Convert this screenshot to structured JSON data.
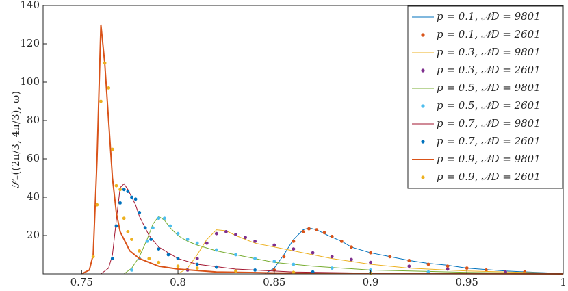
{
  "chart_data": {
    "type": "line",
    "ylabel": "𝒮₋((2π/3, 4π/3), ω)",
    "xlim": [
      0.73,
      1
    ],
    "xticks": [
      0.75,
      0.8,
      0.85,
      0.9,
      0.95,
      1
    ],
    "ylim": [
      0,
      140
    ],
    "yticks": [
      20,
      40,
      60,
      80,
      100,
      120,
      140
    ],
    "legend": "upper-right",
    "series": [
      {
        "name": "p = 0.1, 𝒩D = 9801",
        "style": "line",
        "color": "#0072bd",
        "x": [
          0.845,
          0.85,
          0.855,
          0.86,
          0.865,
          0.868,
          0.872,
          0.878,
          0.885,
          0.89,
          0.9,
          0.91,
          0.92,
          0.93,
          0.94,
          0.95,
          0.97,
          1.0
        ],
        "values": [
          0,
          3,
          10,
          18,
          23,
          24,
          23,
          20,
          17,
          14,
          11,
          9,
          7,
          5.5,
          4.5,
          3,
          1.5,
          0.2
        ]
      },
      {
        "name": "p = 0.1, 𝒩D = 2601",
        "style": "marker",
        "color": "#d95319",
        "x": [
          0.85,
          0.855,
          0.86,
          0.865,
          0.868,
          0.872,
          0.876,
          0.88,
          0.885,
          0.89,
          0.9,
          0.91,
          0.92,
          0.93,
          0.94,
          0.95,
          0.96,
          0.98
        ],
        "values": [
          2,
          9,
          17,
          22,
          23.5,
          23,
          21.5,
          19.5,
          17,
          14,
          11,
          9,
          7,
          5,
          4,
          3,
          2,
          1
        ]
      },
      {
        "name": "p = 0.3, 𝒩D = 9801",
        "style": "line",
        "color": "#edb120",
        "x": [
          0.8,
          0.805,
          0.81,
          0.815,
          0.82,
          0.825,
          0.83,
          0.835,
          0.84,
          0.85,
          0.86,
          0.87,
          0.88,
          0.89,
          0.9,
          0.92,
          0.95,
          1.0
        ],
        "values": [
          0,
          3,
          10,
          18,
          23,
          22.5,
          20,
          18,
          16,
          14,
          12,
          10,
          8,
          6.5,
          5,
          3,
          1.5,
          0.3
        ]
      },
      {
        "name": "p = 0.3, 𝒩D = 2601",
        "style": "marker",
        "color": "#7e2f8e",
        "x": [
          0.805,
          0.81,
          0.815,
          0.82,
          0.825,
          0.83,
          0.835,
          0.84,
          0.85,
          0.86,
          0.87,
          0.88,
          0.89,
          0.9,
          0.92,
          0.94,
          0.97
        ],
        "values": [
          2,
          8,
          16,
          21,
          22,
          20.5,
          19,
          17,
          15,
          13,
          11,
          9,
          7.5,
          6,
          4,
          2.5,
          1
        ]
      },
      {
        "name": "p = 0.5, 𝒩D = 9801",
        "style": "line",
        "color": "#77ac30",
        "x": [
          0.772,
          0.776,
          0.78,
          0.784,
          0.787,
          0.79,
          0.793,
          0.796,
          0.8,
          0.805,
          0.81,
          0.82,
          0.83,
          0.84,
          0.85,
          0.87,
          0.9,
          0.95,
          1.0
        ],
        "values": [
          0,
          3,
          9,
          18,
          26,
          30,
          28,
          24,
          20,
          17,
          15,
          12,
          10,
          8,
          6,
          4,
          2,
          0.8,
          0.2
        ]
      },
      {
        "name": "p = 0.5, 𝒩D = 2601",
        "style": "marker",
        "color": "#4dbeee",
        "x": [
          0.776,
          0.78,
          0.784,
          0.787,
          0.79,
          0.793,
          0.796,
          0.8,
          0.805,
          0.81,
          0.82,
          0.83,
          0.84,
          0.85,
          0.86,
          0.88,
          0.9,
          0.93
        ],
        "values": [
          2,
          8,
          17,
          24,
          29,
          29,
          25,
          21,
          18,
          16,
          12.5,
          10,
          8,
          6.5,
          5,
          3,
          2,
          1
        ]
      },
      {
        "name": "p = 0.7, 𝒩D = 9801",
        "style": "line",
        "color": "#a2142f",
        "x": [
          0.76,
          0.764,
          0.766,
          0.768,
          0.77,
          0.772,
          0.774,
          0.776,
          0.778,
          0.78,
          0.785,
          0.79,
          0.8,
          0.81,
          0.83,
          0.86,
          0.9,
          1.0
        ],
        "values": [
          0,
          3,
          10,
          28,
          45,
          47,
          44,
          40,
          36,
          30,
          20,
          14,
          8,
          5,
          2.5,
          1,
          0.4,
          0
        ]
      },
      {
        "name": "p = 0.7, 𝒩D = 2601",
        "style": "marker",
        "color": "#0072bd",
        "x": [
          0.766,
          0.768,
          0.77,
          0.772,
          0.774,
          0.776,
          0.778,
          0.78,
          0.783,
          0.786,
          0.79,
          0.795,
          0.8,
          0.81,
          0.82,
          0.84,
          0.87,
          0.9
        ],
        "values": [
          8,
          25,
          37,
          44,
          43,
          40,
          39,
          32,
          24,
          18,
          13,
          10,
          8,
          5,
          3.5,
          2,
          1,
          0.5
        ]
      },
      {
        "name": "p = 0.9, 𝒩D = 9801",
        "style": "line",
        "color": "#d95319",
        "width": 2,
        "x": [
          0.75,
          0.754,
          0.756,
          0.758,
          0.76,
          0.762,
          0.764,
          0.766,
          0.768,
          0.77,
          0.775,
          0.78,
          0.79,
          0.8,
          0.82,
          0.85,
          0.9,
          1.0
        ],
        "values": [
          0,
          2,
          10,
          60,
          130,
          110,
          80,
          50,
          32,
          22,
          12,
          8,
          4,
          2.5,
          1,
          0.5,
          0.2,
          0
        ]
      },
      {
        "name": "p = 0.9, 𝒩D = 2601",
        "style": "marker",
        "color": "#edb120",
        "x": [
          0.756,
          0.758,
          0.76,
          0.762,
          0.764,
          0.766,
          0.768,
          0.77,
          0.772,
          0.774,
          0.776,
          0.78,
          0.785,
          0.79,
          0.8,
          0.81,
          0.83,
          0.86,
          0.9
        ],
        "values": [
          9,
          36,
          90,
          110,
          97,
          65,
          46,
          44,
          29,
          22,
          18,
          12,
          8,
          6,
          4,
          3,
          1.5,
          0.8,
          0.3
        ]
      }
    ]
  }
}
